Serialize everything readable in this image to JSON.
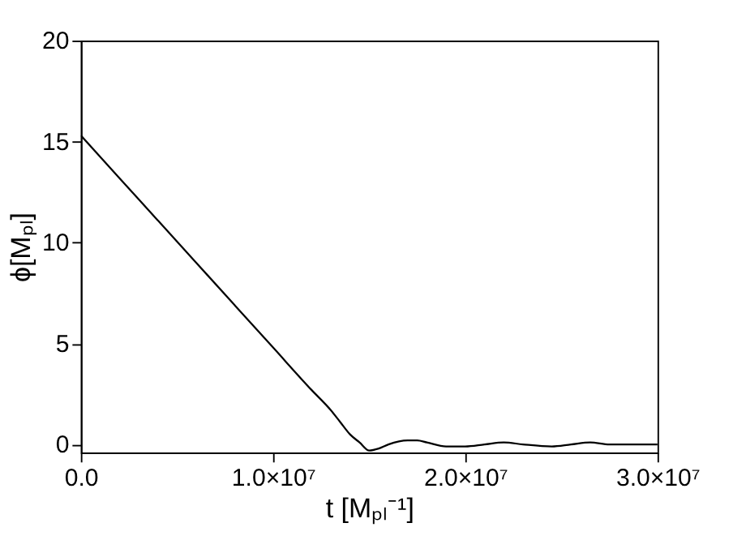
{
  "chart_data": {
    "type": "line",
    "xlabel": "t [Mₚₗ⁻¹]",
    "ylabel": "ϕ[Mₚₗ]",
    "x": [
      0,
      2000000,
      4000000,
      6000000,
      8000000,
      10000000,
      12000000,
      13000000,
      13500000,
      14000000,
      14500000,
      15000000,
      15500000,
      16000000,
      17000000,
      17500000,
      18000000,
      19000000,
      20000000,
      21000000,
      22000000,
      23000000,
      24500000,
      25500000,
      26500000,
      27500000,
      28500000,
      30000000
    ],
    "series": [
      {
        "color": "#000000",
        "values": [
          15.3,
          13.2,
          11.1,
          9.0,
          6.9,
          4.8,
          2.7,
          1.7,
          1.1,
          0.5,
          0.1,
          -0.3,
          -0.2,
          0.0,
          0.2,
          0.2,
          0.1,
          -0.1,
          -0.1,
          0.0,
          0.1,
          0.0,
          -0.1,
          0.0,
          0.1,
          0.0,
          0.0,
          0.0
        ]
      }
    ],
    "xlim": [
      0,
      30000000
    ],
    "ylim": [
      -0.4,
      20
    ],
    "xticks": [
      {
        "value": 0,
        "label": "0.0"
      },
      {
        "value": 10000000,
        "label": "1.0×10⁷"
      },
      {
        "value": 20000000,
        "label": "2.0×10⁷"
      },
      {
        "value": 30000000,
        "label": "3.0×10⁷"
      }
    ],
    "yticks": [
      0,
      5,
      10,
      15,
      20
    ],
    "grid": false,
    "marker": "none",
    "line_style": "solid"
  }
}
